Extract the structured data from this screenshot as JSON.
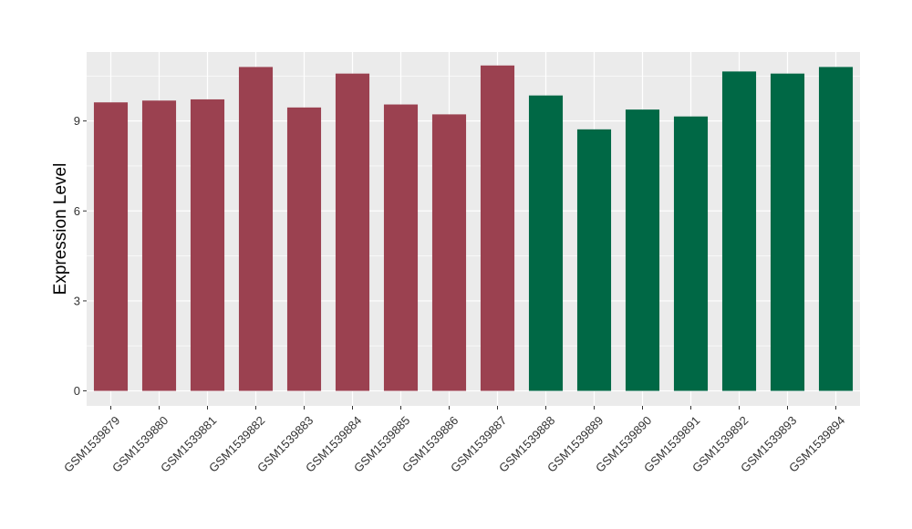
{
  "chart_data": {
    "type": "bar",
    "title": "",
    "xlabel": "",
    "ylabel": "Expression Level",
    "ylim": [
      -0.5,
      11.3
    ],
    "yticks": [
      0,
      3,
      6,
      9
    ],
    "grid": true,
    "legend": "none",
    "colors": {
      "panel": "#ebebeb",
      "grid": "#ffffff",
      "group_a": "#9b4150",
      "group_b": "#006845"
    },
    "categories": [
      "GSM1539879",
      "GSM1539880",
      "GSM1539881",
      "GSM1539882",
      "GSM1539883",
      "GSM1539884",
      "GSM1539885",
      "GSM1539886",
      "GSM1539887",
      "GSM1539888",
      "GSM1539889",
      "GSM1539890",
      "GSM1539891",
      "GSM1539892",
      "GSM1539893",
      "GSM1539894"
    ],
    "values": [
      9.62,
      9.68,
      9.72,
      10.8,
      9.45,
      10.58,
      9.55,
      9.22,
      10.85,
      9.85,
      8.72,
      9.38,
      9.15,
      10.65,
      10.58,
      10.8
    ],
    "bar_groups": [
      "a",
      "a",
      "a",
      "a",
      "a",
      "a",
      "a",
      "a",
      "a",
      "b",
      "b",
      "b",
      "b",
      "b",
      "b",
      "b"
    ]
  }
}
